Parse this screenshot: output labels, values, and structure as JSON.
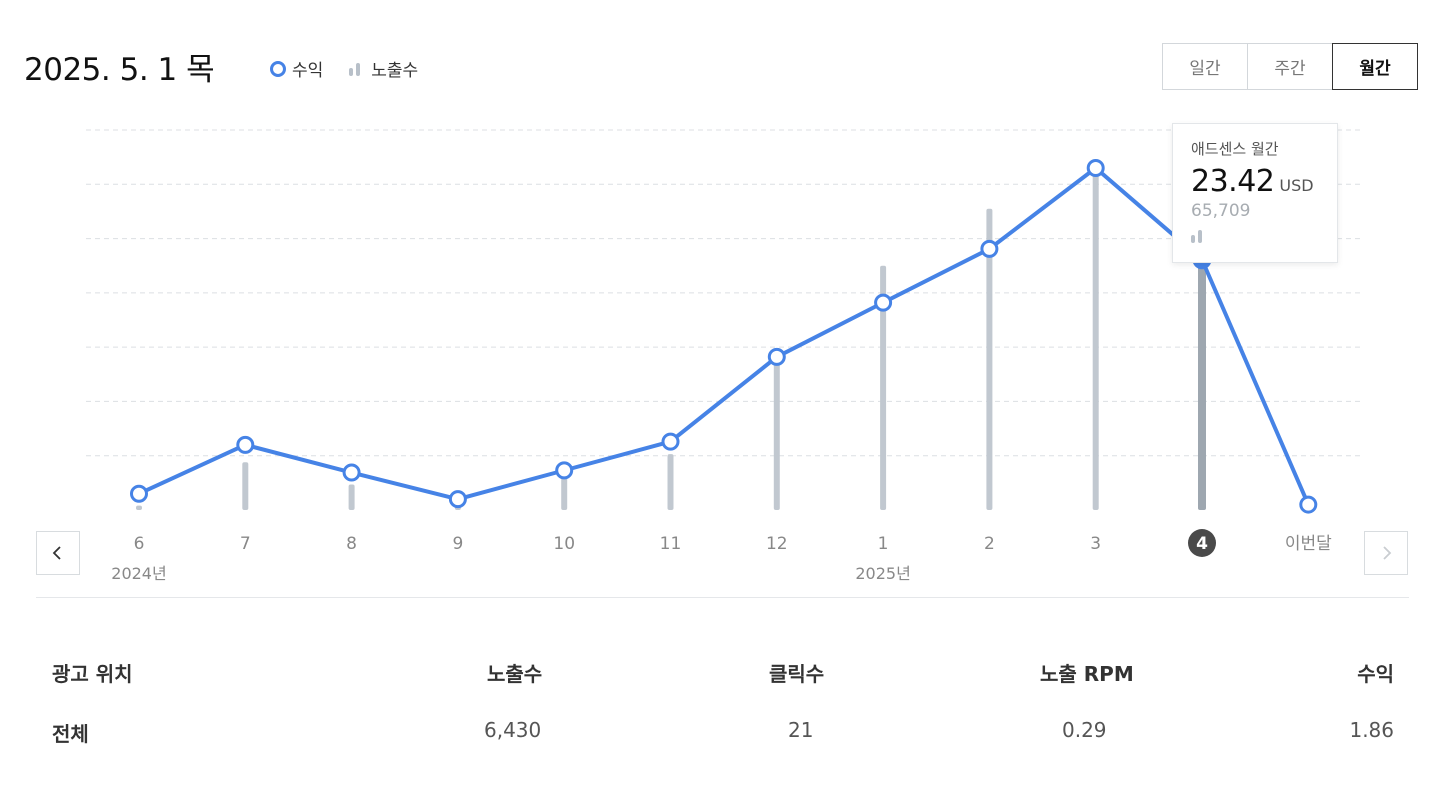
{
  "header": {
    "date": "2025. 5. 1 목",
    "legend": {
      "revenue": "수익",
      "impressions": "노출수"
    },
    "period_tabs": [
      {
        "label": "일간",
        "active": false
      },
      {
        "label": "주간",
        "active": false
      },
      {
        "label": "월간",
        "active": true
      }
    ]
  },
  "tooltip": {
    "title": "애드센스 월간",
    "value": "23.42",
    "unit": "USD",
    "impressions": "65,709"
  },
  "colors": {
    "line": "#4683e6",
    "bar": "#c1c8d0",
    "bar_selected": "#9ea7b0",
    "grid": "#dcdfe3"
  },
  "chart_data": {
    "type": "line",
    "categories": [
      "6",
      "7",
      "8",
      "9",
      "10",
      "11",
      "12",
      "1",
      "2",
      "3",
      "4",
      "이번달"
    ],
    "year_labels": [
      "2024년",
      "2025년"
    ],
    "selected_index": 10,
    "series": [
      {
        "name": "수익",
        "type": "line",
        "values": [
          3.0,
          12.0,
          6.9,
          2.0,
          7.3,
          12.6,
          28.2,
          38.2,
          48.1,
          63.0,
          46.1,
          1.0
        ]
      },
      {
        "name": "노출수",
        "type": "bar",
        "values": [
          0.8,
          8.8,
          4.7,
          2.0,
          6.3,
          10.3,
          28.8,
          45.0,
          55.5,
          63.0,
          47.4,
          0
        ]
      }
    ],
    "grid": true,
    "ylim": [
      0,
      70
    ],
    "y_tick_labels": false
  },
  "table": {
    "headers": [
      "광고 위치",
      "노출수",
      "클릭수",
      "노출 RPM",
      "수익"
    ],
    "rows": [
      [
        "전체",
        "6,430",
        "21",
        "0.29",
        "1.86"
      ]
    ]
  },
  "nav": {
    "prev_icon": "chevron-left-icon",
    "next_icon": "chevron-right-icon",
    "next_enabled": false
  }
}
